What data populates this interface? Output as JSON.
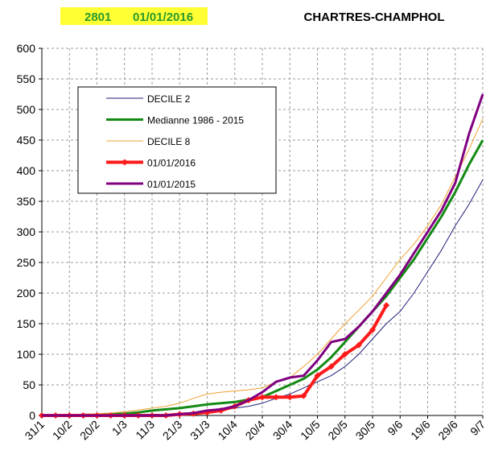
{
  "header": {
    "code": "2801",
    "date": "01/01/2016"
  },
  "chart_data": {
    "type": "line",
    "title": "CHARTRES-CHAMPHOL",
    "categories": [
      "31/1",
      null,
      "10/2",
      null,
      "20/2",
      null,
      "1/3",
      null,
      "11/3",
      null,
      "21/3",
      null,
      "31/3",
      null,
      "10/4",
      null,
      "20/4",
      null,
      "30/4",
      null,
      "10/5",
      null,
      "20/5",
      null,
      "30/5",
      null,
      "9/6",
      null,
      "19/6",
      null,
      "29/6",
      null,
      "9/7"
    ],
    "ylim": [
      0,
      600
    ],
    "yticks": [
      0,
      50,
      100,
      150,
      200,
      250,
      300,
      350,
      400,
      450,
      500,
      550,
      600
    ],
    "grid": true,
    "legend": "upper left",
    "series": [
      {
        "name": "DECILE 2",
        "color": "#1f1f7a",
        "width": 1,
        "values": [
          0,
          0,
          0,
          0,
          0,
          0,
          1,
          1,
          2,
          2,
          3,
          4,
          5,
          8,
          12,
          15,
          20,
          28,
          35,
          45,
          55,
          65,
          80,
          100,
          125,
          150,
          170,
          200,
          235,
          270,
          310,
          345,
          385
        ]
      },
      {
        "name": "Medianne 1986 - 2015",
        "color": "#138a13",
        "width": 3,
        "values": [
          0,
          0,
          0,
          1,
          1,
          2,
          3,
          5,
          8,
          10,
          12,
          15,
          18,
          20,
          22,
          26,
          30,
          40,
          50,
          60,
          75,
          95,
          120,
          145,
          170,
          195,
          225,
          255,
          290,
          325,
          365,
          410,
          450
        ]
      },
      {
        "name": "DECILE 8",
        "color": "#f0a030",
        "width": 1,
        "values": [
          0,
          1,
          1,
          2,
          3,
          4,
          6,
          9,
          12,
          15,
          20,
          28,
          35,
          38,
          40,
          42,
          45,
          55,
          62,
          80,
          100,
          125,
          150,
          172,
          195,
          225,
          255,
          280,
          310,
          345,
          390,
          435,
          485
        ]
      },
      {
        "name": "01/01/2016",
        "color": "#ff1a1a",
        "width": 4,
        "markers": true,
        "values": [
          0,
          0,
          0,
          0,
          0,
          0,
          0,
          0,
          0,
          0,
          2,
          3,
          5,
          8,
          15,
          25,
          30,
          30,
          30,
          32,
          65,
          80,
          100,
          115,
          140,
          180,
          null,
          null,
          null,
          null,
          null,
          null,
          null
        ]
      },
      {
        "name": "01/01/2015",
        "color": "#800080",
        "width": 3,
        "values": [
          0,
          0,
          0,
          0,
          0,
          0,
          0,
          0,
          0,
          0,
          2,
          4,
          8,
          10,
          15,
          25,
          38,
          55,
          62,
          65,
          90,
          120,
          125,
          145,
          170,
          200,
          230,
          265,
          300,
          335,
          380,
          460,
          525
        ]
      }
    ]
  }
}
